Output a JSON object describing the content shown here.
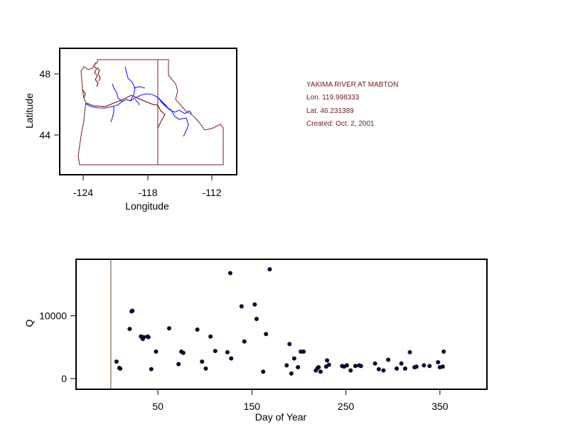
{
  "station": {
    "name": "YAKIMA RIVER AT MABTON",
    "lon": "Lon. 119.998333",
    "lat": "Lat. 46.231389",
    "created": "Created:   Oct. 2, 2001"
  },
  "colors": {
    "map_border": "#7a1f1f",
    "rivers": "#1a1aff",
    "points": "#0a0a2e",
    "vline": "#6b4a30"
  },
  "chart_data": [
    {
      "type": "map",
      "xlabel": "Longitude",
      "ylabel": "Latitude",
      "xticks": [
        "-124",
        "-118",
        "-112"
      ],
      "yticks": [
        "48",
        "44"
      ],
      "xlim": [
        -126.2,
        -109.6
      ],
      "ylim": [
        41.4,
        49.8
      ],
      "region": "Washington, Oregon, Idaho"
    },
    {
      "type": "scatter",
      "xlabel": "Day of Year",
      "ylabel": "Q",
      "xticks": [
        "50",
        "150",
        "250",
        "350"
      ],
      "yticks": [
        "0",
        "10000"
      ],
      "xlim": [
        -37,
        400
      ],
      "ylim": [
        -1700,
        19000
      ],
      "vline_x": 0,
      "points": [
        [
          6,
          2700
        ],
        [
          9,
          1700
        ],
        [
          10,
          1600
        ],
        [
          20,
          7900
        ],
        [
          22,
          10700
        ],
        [
          23,
          10800
        ],
        [
          32,
          6700
        ],
        [
          34,
          6300
        ],
        [
          35,
          6600
        ],
        [
          39,
          6700
        ],
        [
          40,
          6600
        ],
        [
          43,
          1500
        ],
        [
          48,
          4300
        ],
        [
          62,
          8000
        ],
        [
          72,
          2300
        ],
        [
          75,
          4300
        ],
        [
          77,
          4100
        ],
        [
          92,
          7800
        ],
        [
          97,
          2700
        ],
        [
          101,
          1600
        ],
        [
          106,
          6700
        ],
        [
          111,
          4400
        ],
        [
          124,
          4200
        ],
        [
          127,
          16800
        ],
        [
          128,
          3200
        ],
        [
          139,
          11500
        ],
        [
          142,
          5900
        ],
        [
          153,
          11800
        ],
        [
          155,
          9500
        ],
        [
          162,
          1100
        ],
        [
          165,
          7100
        ],
        [
          169,
          17400
        ],
        [
          187,
          2100
        ],
        [
          190,
          5500
        ],
        [
          192,
          800
        ],
        [
          195,
          3200
        ],
        [
          199,
          1800
        ],
        [
          202,
          4300
        ],
        [
          205,
          4300
        ],
        [
          218,
          1300
        ],
        [
          220,
          1700
        ],
        [
          221,
          1800
        ],
        [
          223,
          1100
        ],
        [
          229,
          1900
        ],
        [
          230,
          2900
        ],
        [
          232,
          2200
        ],
        [
          246,
          2000
        ],
        [
          248,
          1900
        ],
        [
          251,
          2100
        ],
        [
          255,
          1300
        ],
        [
          260,
          2000
        ],
        [
          264,
          2100
        ],
        [
          266,
          2000
        ],
        [
          281,
          2400
        ],
        [
          285,
          1500
        ],
        [
          290,
          1300
        ],
        [
          295,
          3000
        ],
        [
          304,
          1600
        ],
        [
          309,
          2400
        ],
        [
          313,
          1600
        ],
        [
          318,
          4200
        ],
        [
          323,
          1800
        ],
        [
          325,
          1900
        ],
        [
          333,
          2100
        ],
        [
          339,
          2000
        ],
        [
          348,
          2600
        ],
        [
          350,
          1800
        ],
        [
          353,
          1900
        ],
        [
          354,
          4300
        ]
      ]
    }
  ]
}
